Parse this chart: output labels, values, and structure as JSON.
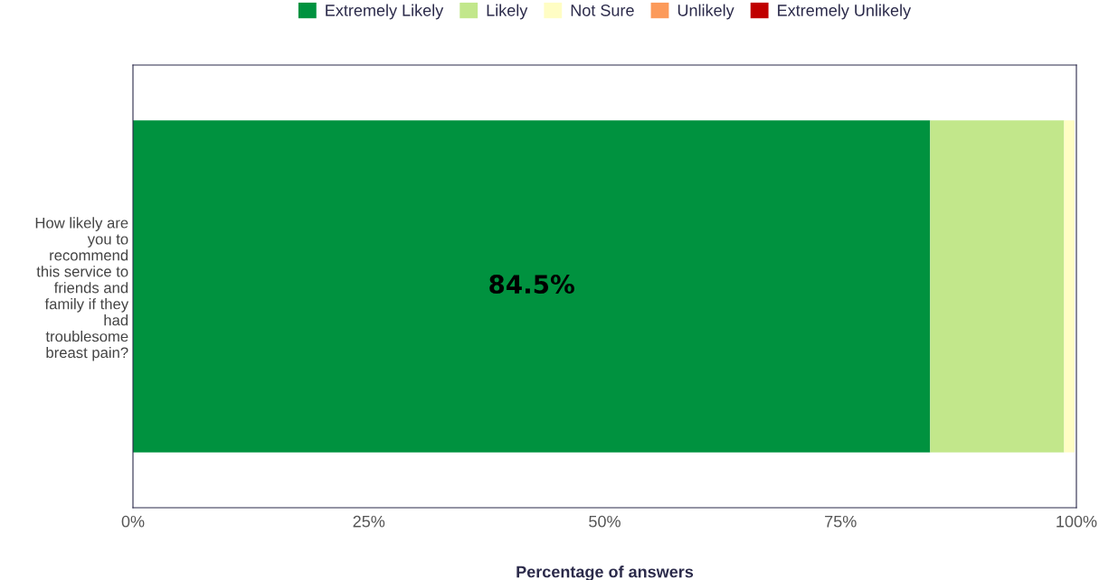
{
  "chart_data": {
    "type": "bar",
    "orientation": "horizontal",
    "stacked": true,
    "xlabel": "Percentage of answers",
    "categories": [
      "How likely are you to recommend this service to friends and family if they had troublesome breast pain?"
    ],
    "series": [
      {
        "name": "Extremely Likely",
        "color": "#00923f",
        "values": [
          84.5
        ],
        "value_labels": [
          "84.5%"
        ]
      },
      {
        "name": "Likely",
        "color": "#c2e78b",
        "values": [
          14.2
        ]
      },
      {
        "name": "Not Sure",
        "color": "#fffdc4",
        "values": [
          1.1
        ]
      },
      {
        "name": "Unlikely",
        "color": "#fc9a5a",
        "values": [
          null
        ]
      },
      {
        "name": "Extremely Unlikely",
        "color": "#c00000",
        "values": [
          0
        ]
      }
    ],
    "xlim": [
      0,
      100
    ],
    "xticks": [
      {
        "value": 0,
        "label": "0%"
      },
      {
        "value": 25,
        "label": "25%"
      },
      {
        "value": 50,
        "label": "50%"
      },
      {
        "value": 75,
        "label": "75%"
      },
      {
        "value": 100,
        "label": "100%"
      }
    ],
    "legend": "top",
    "grid": false
  }
}
